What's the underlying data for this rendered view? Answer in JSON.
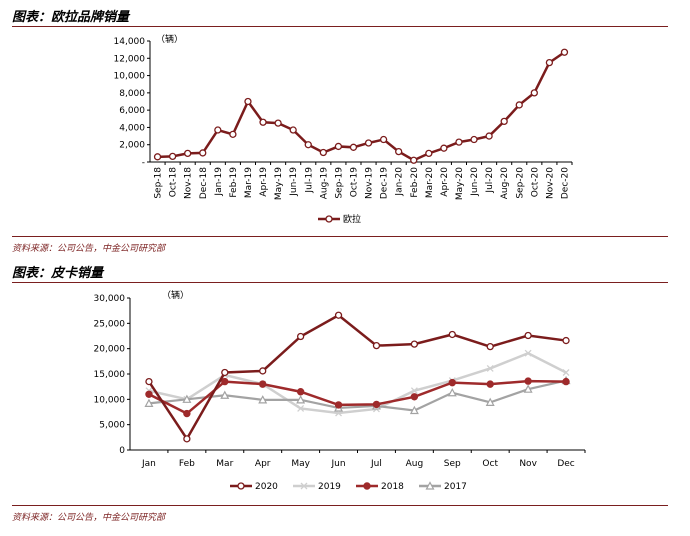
{
  "colors": {
    "accent": "#7a1f1f",
    "s2020": "#7b1c1c",
    "s2019": "#cfcfcf",
    "s2018": "#9e2a2b",
    "s2017": "#a3a3a3"
  },
  "fig1": {
    "heading": "图表：欧拉品牌销量",
    "source": "资料来源：公司公告，中金公司研究部"
  },
  "fig2": {
    "heading": "图表：皮卡销量",
    "source": "资料来源：公司公告，中金公司研究部"
  },
  "chart_data": [
    {
      "type": "line",
      "title": "欧拉品牌销量",
      "unit_label": "（辆）",
      "categories": [
        "Sep-18",
        "Oct-18",
        "Nov-18",
        "Dec-18",
        "Jan-19",
        "Feb-19",
        "Mar-19",
        "Apr-19",
        "May-19",
        "Jun-19",
        "Jul-19",
        "Aug-19",
        "Sep-19",
        "Oct-19",
        "Nov-19",
        "Dec-19",
        "Jan-20",
        "Feb-20",
        "Mar-20",
        "Apr-20",
        "May-20",
        "Jun-20",
        "Jul-20",
        "Aug-20",
        "Sep-20",
        "Oct-20",
        "Nov-20",
        "Dec-20"
      ],
      "yticks": [
        "-",
        "2,000",
        "4,000",
        "6,000",
        "8,000",
        "10,000",
        "12,000",
        "14,000"
      ],
      "ylim": [
        0,
        14000
      ],
      "legend": "top-right-bottom",
      "series": [
        {
          "name": "欧拉",
          "values": [
            600,
            650,
            1000,
            1050,
            3700,
            3200,
            7000,
            4600,
            4500,
            3700,
            2000,
            1100,
            1800,
            1700,
            2200,
            2600,
            1200,
            200,
            1000,
            1600,
            2300,
            2600,
            3000,
            4700,
            6600,
            8000,
            11500,
            12700
          ]
        }
      ]
    },
    {
      "type": "line",
      "title": "皮卡销量",
      "unit_label": "（辆）",
      "categories": [
        "Jan",
        "Feb",
        "Mar",
        "Apr",
        "May",
        "Jun",
        "Jul",
        "Aug",
        "Sep",
        "Oct",
        "Nov",
        "Dec"
      ],
      "yticks": [
        "0",
        "5,000",
        "10,000",
        "15,000",
        "20,000",
        "25,000",
        "30,000"
      ],
      "ylim": [
        0,
        30000
      ],
      "legend": "bottom",
      "series": [
        {
          "name": "2020",
          "values": [
            13500,
            2200,
            15300,
            15600,
            22400,
            26600,
            20600,
            20900,
            22800,
            20400,
            22600,
            21600
          ]
        },
        {
          "name": "2019",
          "values": [
            11700,
            10000,
            14800,
            13000,
            8200,
            7300,
            8100,
            11700,
            13700,
            16100,
            19100,
            15300
          ]
        },
        {
          "name": "2018",
          "values": [
            11000,
            7200,
            13500,
            13000,
            11500,
            8900,
            9000,
            10500,
            13300,
            13000,
            13600,
            13500
          ]
        },
        {
          "name": "2017",
          "values": [
            9200,
            10000,
            10800,
            9900,
            9900,
            8300,
            8700,
            7800,
            11300,
            9400,
            12000,
            13700
          ]
        }
      ]
    }
  ]
}
